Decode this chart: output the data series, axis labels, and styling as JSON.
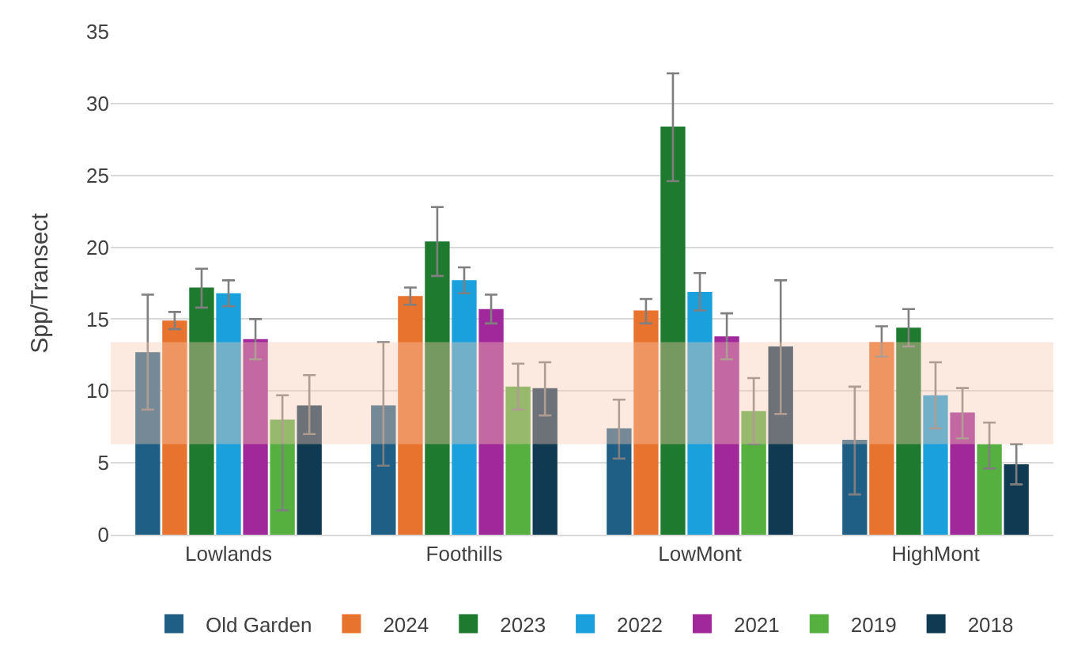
{
  "chart_data": {
    "type": "bar",
    "ylabel": "Spp/Transect",
    "categories": [
      "Lowlands",
      "Foothills",
      "LowMont",
      "HighMont"
    ],
    "series": [
      {
        "name": "Old Garden",
        "color": "#1f5f85",
        "values": [
          12.7,
          9.0,
          7.4,
          6.6
        ],
        "errors": [
          [
            8.7,
            16.7
          ],
          [
            4.8,
            13.4
          ],
          [
            5.3,
            9.4
          ],
          [
            2.8,
            10.3
          ]
        ]
      },
      {
        "name": "2024",
        "color": "#e8732f",
        "values": [
          14.9,
          16.6,
          15.6,
          13.4
        ],
        "errors": [
          [
            14.3,
            15.5
          ],
          [
            16.0,
            17.2
          ],
          [
            14.7,
            16.4
          ],
          [
            12.4,
            14.5
          ]
        ]
      },
      {
        "name": "2023",
        "color": "#1e7a2e",
        "values": [
          17.2,
          20.4,
          28.4,
          14.4
        ],
        "errors": [
          [
            15.8,
            18.5
          ],
          [
            18.0,
            22.8
          ],
          [
            24.6,
            32.1
          ],
          [
            13.1,
            15.7
          ]
        ]
      },
      {
        "name": "2022",
        "color": "#1aa0dc",
        "values": [
          16.8,
          17.7,
          16.9,
          9.7
        ],
        "errors": [
          [
            15.9,
            17.7
          ],
          [
            16.8,
            18.6
          ],
          [
            15.6,
            18.2
          ],
          [
            7.4,
            12.0
          ]
        ]
      },
      {
        "name": "2021",
        "color": "#a0289a",
        "values": [
          13.6,
          15.7,
          13.8,
          8.5
        ],
        "errors": [
          [
            12.2,
            15.0
          ],
          [
            14.7,
            16.7
          ],
          [
            12.2,
            15.4
          ],
          [
            6.7,
            10.2
          ]
        ]
      },
      {
        "name": "2019",
        "color": "#55b040",
        "values": [
          8.0,
          10.3,
          8.6,
          6.3
        ],
        "errors": [
          [
            1.7,
            9.7
          ],
          [
            8.7,
            11.9
          ],
          [
            6.3,
            10.9
          ],
          [
            4.6,
            7.8
          ]
        ]
      },
      {
        "name": "2018",
        "color": "#0f3a52",
        "values": [
          9.0,
          10.2,
          13.1,
          4.9
        ],
        "errors": [
          [
            7.0,
            11.1
          ],
          [
            8.3,
            12.0
          ],
          [
            8.4,
            17.7
          ],
          [
            3.5,
            6.3
          ]
        ]
      }
    ],
    "ylim": [
      0,
      35
    ],
    "yticks": [
      0,
      5,
      10,
      15,
      20,
      25,
      30,
      35
    ],
    "grid": "y",
    "legend": "bottom",
    "bands": [
      {
        "axis": "y",
        "from": 6.3,
        "to": 13.4,
        "color": "#f7c8b0"
      }
    ]
  }
}
